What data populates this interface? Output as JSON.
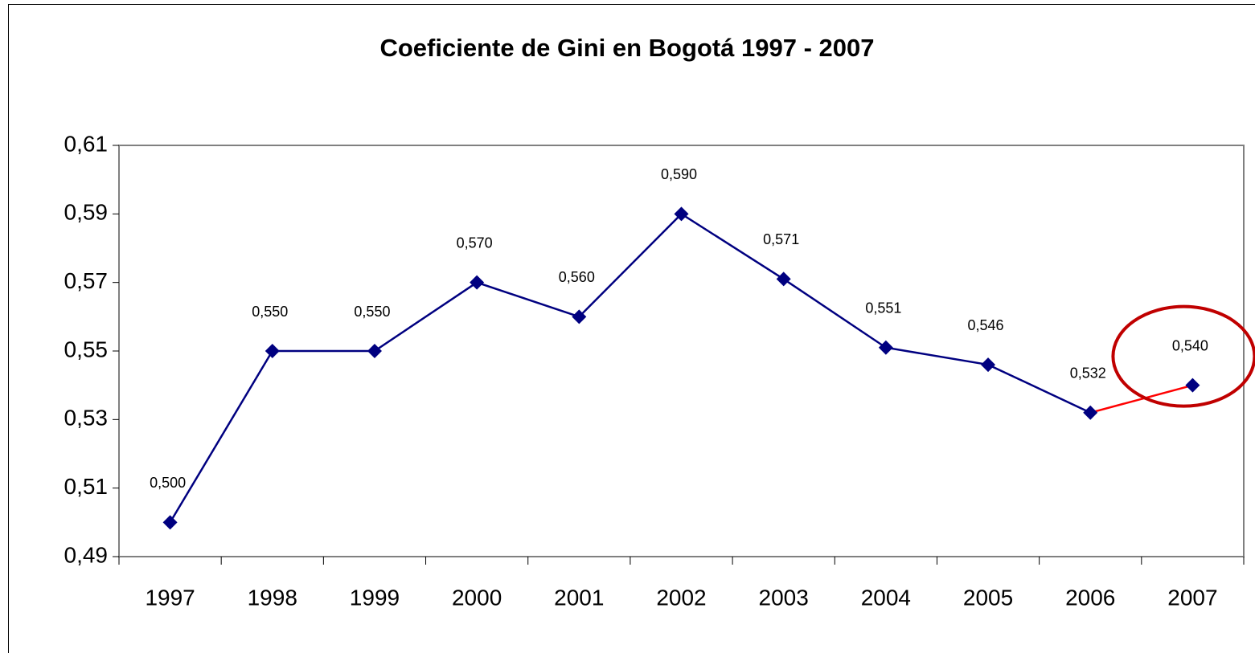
{
  "chart_data": {
    "type": "line",
    "title": "Coeficiente de Gini en Bogotá 1997 - 2007",
    "categories": [
      "1997",
      "1998",
      "1999",
      "2000",
      "2001",
      "2002",
      "2003",
      "2004",
      "2005",
      "2006",
      "2007"
    ],
    "series": [
      {
        "name": "Coeficiente de Gini",
        "color": "#000080",
        "values": [
          0.5,
          0.55,
          0.55,
          0.57,
          0.56,
          0.59,
          0.571,
          0.551,
          0.546,
          0.532,
          0.54
        ],
        "value_labels": [
          "0,500",
          "0,550",
          "0,550",
          "0,570",
          "0,560",
          "0,590",
          "0,571",
          "0,551",
          "0,546",
          "0,532",
          "0,540"
        ]
      }
    ],
    "highlight_color": "#ff0000",
    "circle_color": "#c00000",
    "ylim": [
      0.49,
      0.61
    ],
    "yticks": [
      {
        "value": 0.49,
        "label": "0,49"
      },
      {
        "value": 0.51,
        "label": "0,51"
      },
      {
        "value": 0.53,
        "label": "0,53"
      },
      {
        "value": 0.55,
        "label": "0,55"
      },
      {
        "value": 0.57,
        "label": "0,57"
      },
      {
        "value": 0.59,
        "label": "0,59"
      },
      {
        "value": 0.61,
        "label": "0,61"
      }
    ],
    "grid": false
  }
}
